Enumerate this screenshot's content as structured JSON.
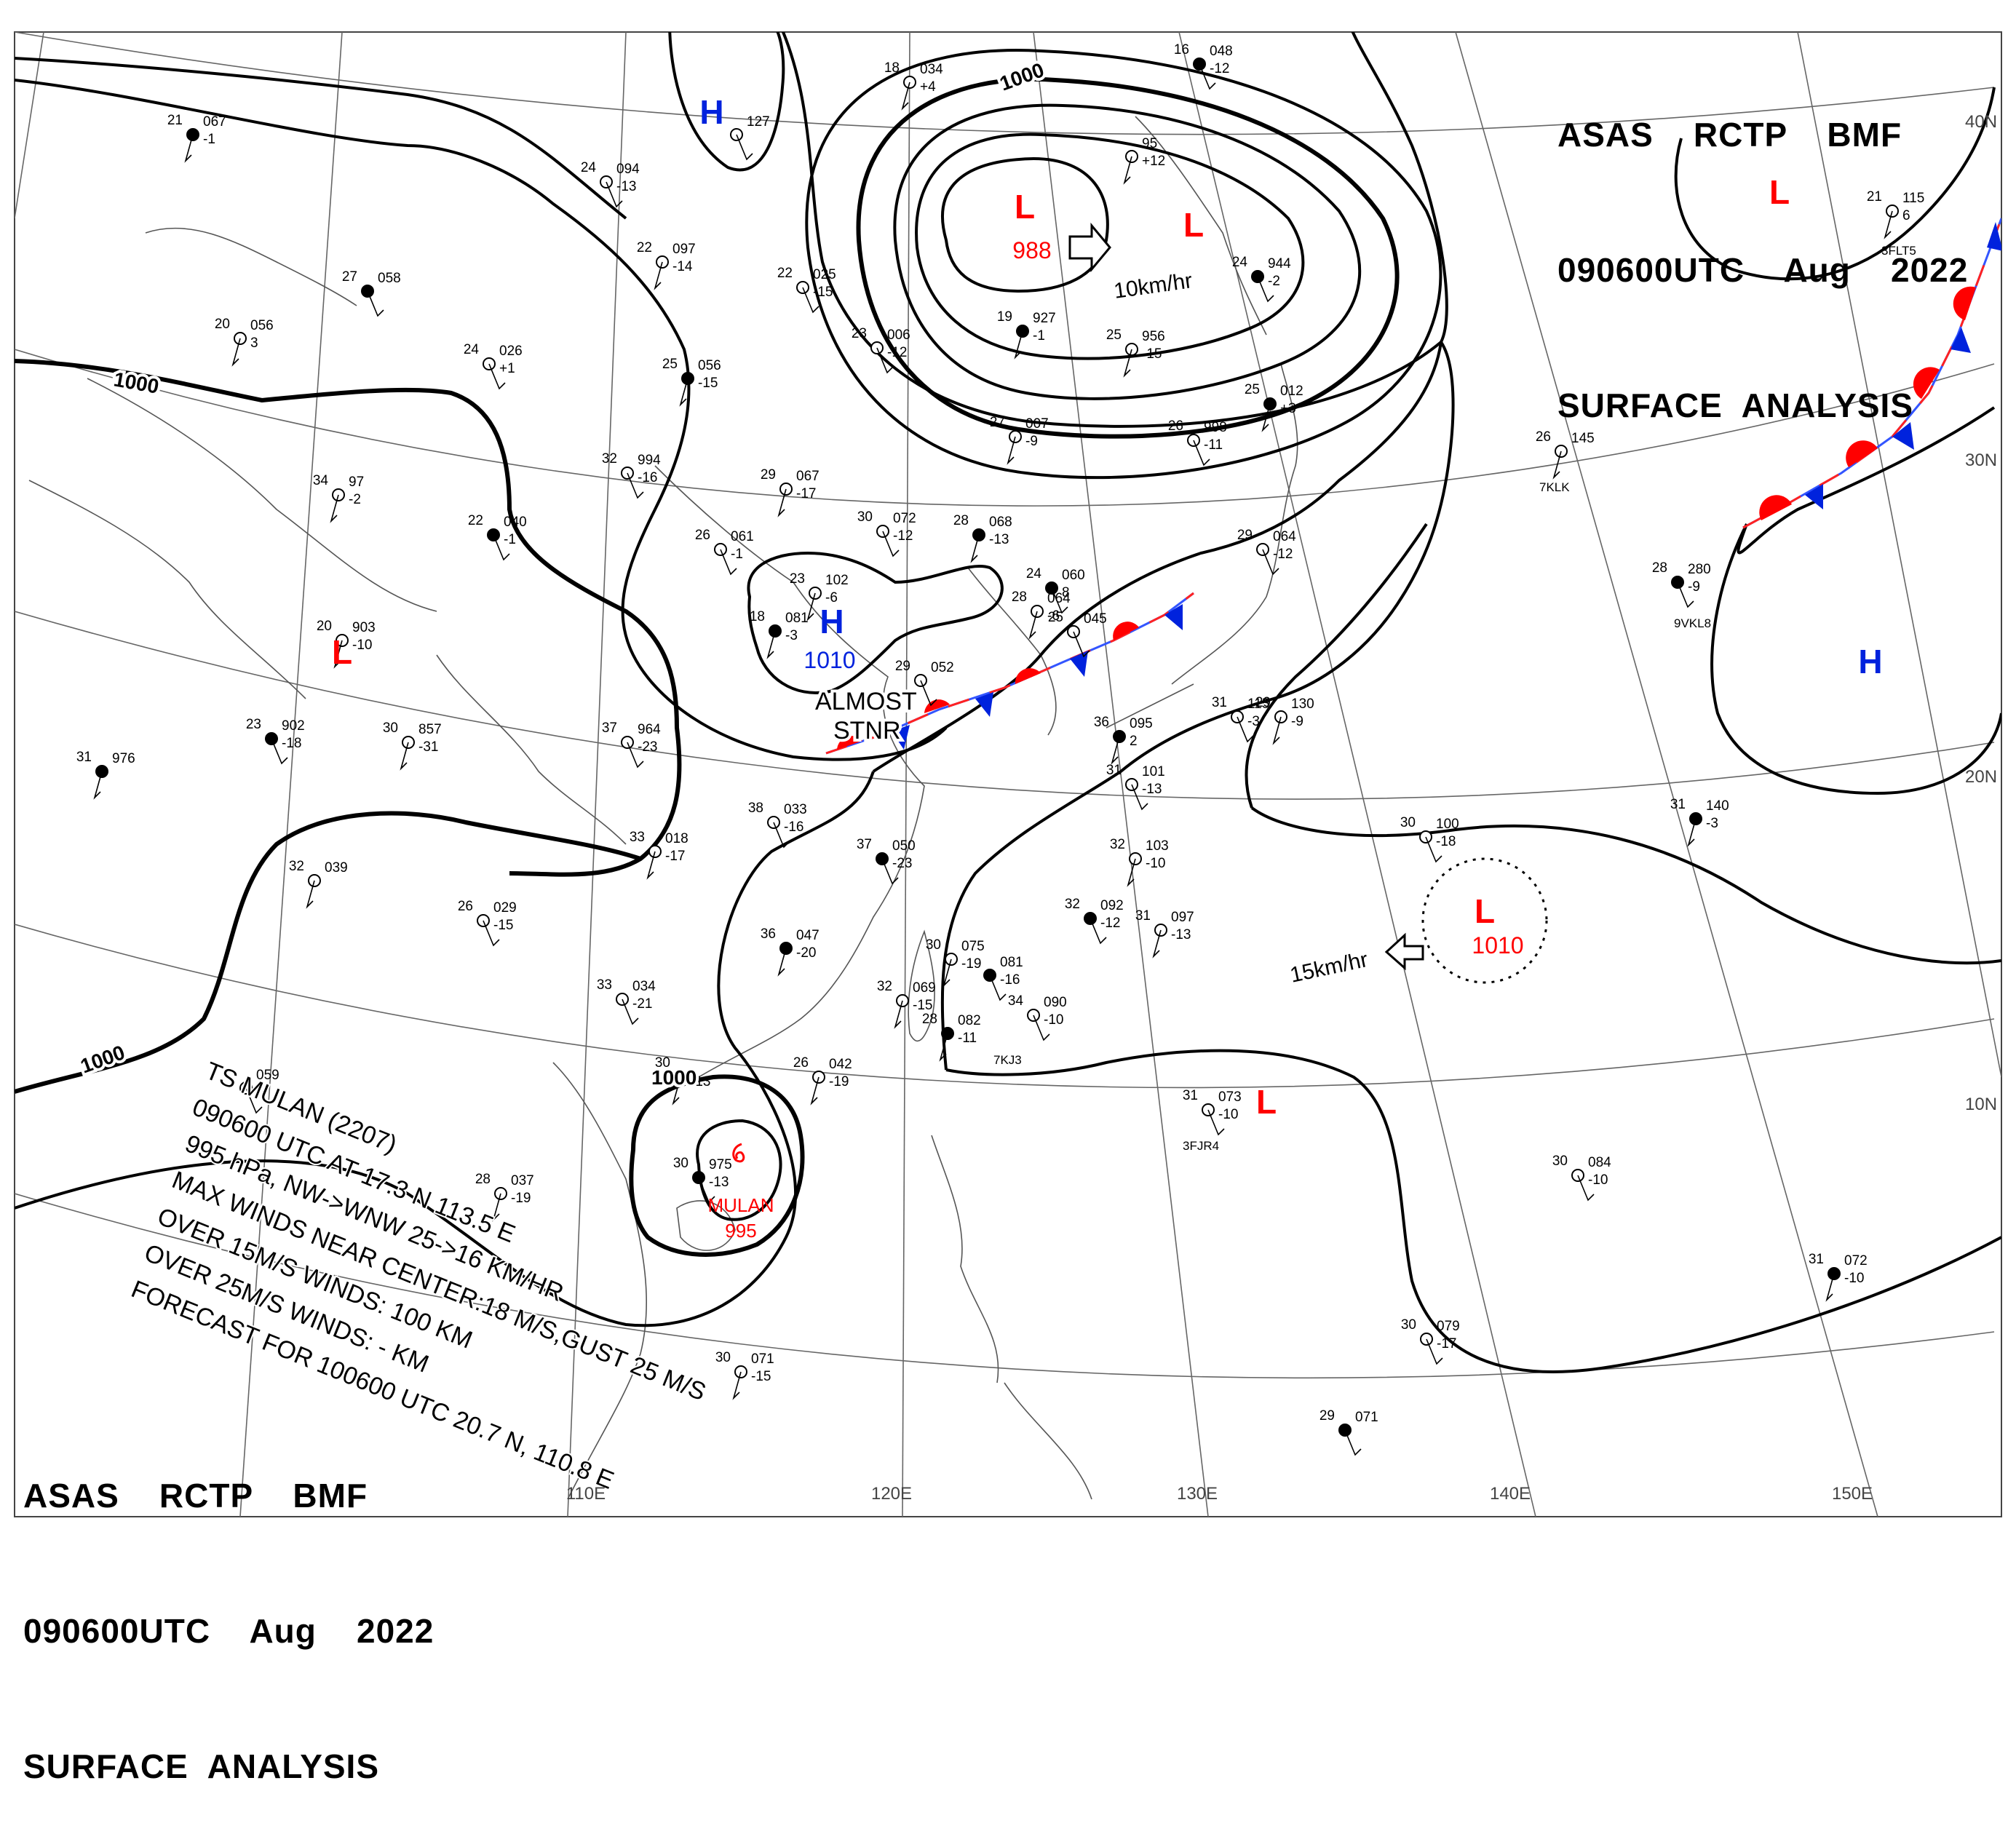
{
  "header": {
    "line1": "ASAS    RCTP    BMF",
    "line2": "090600UTC    Aug    2022",
    "line3": "SURFACE  ANALYSIS"
  },
  "footer": {
    "line1": "ASAS    RCTP    BMF",
    "line2": "090600UTC    Aug    2022",
    "line3": "SURFACE  ANALYSIS"
  },
  "colors": {
    "low": "#ff0000",
    "high": "#0022dd",
    "isobar": "#000000",
    "grid": "#666666",
    "coast": "#555555"
  },
  "lon_labels": [
    "110E",
    "120E",
    "130E",
    "140E",
    "150E"
  ],
  "lat_labels": [
    "40N",
    "30N",
    "20N",
    "10N"
  ],
  "isobar_labels": [
    "1000",
    "1000",
    "1000",
    "1000",
    "1000"
  ],
  "pressure_centers": [
    {
      "letter": "L",
      "value": "988",
      "type": "low",
      "motion": "10km/hr"
    },
    {
      "letter": "L",
      "value": "",
      "type": "low"
    },
    {
      "letter": "L",
      "value": "",
      "type": "low"
    },
    {
      "letter": "L",
      "value": "",
      "type": "low"
    },
    {
      "letter": "L",
      "value": "",
      "type": "low"
    },
    {
      "letter": "L",
      "value": "1010",
      "type": "low",
      "motion": "15km/hr"
    },
    {
      "letter": "H",
      "value": "",
      "type": "high"
    },
    {
      "letter": "H",
      "value": "1010",
      "type": "high"
    },
    {
      "letter": "H",
      "value": "",
      "type": "high"
    }
  ],
  "front_note": [
    "ALMOST",
    "STNR"
  ],
  "storm": {
    "name": "MULAN",
    "pressure": "995",
    "lines": [
      "TS  MULAN  (2207)",
      "090600 UTC  AT 17.3 N  113.5 E",
      "995 hPa, NW->WNW  25->16 KM/HR",
      "MAX WINDS NEAR CENTER:18 M/S,GUST 25 M/S",
      "OVER 15M/S WINDS: 100 KM",
      "OVER 25M/S WINDS: - KM",
      "FORECAST FOR 100600 UTC 20.7 N, 110.8 E"
    ]
  },
  "stations": [
    {
      "t": "21",
      "p": "067",
      "d": "-1"
    },
    {
      "t": "24",
      "p": "094",
      "d": "-13"
    },
    {
      "t": "22",
      "p": "097",
      "d": "-14"
    },
    {
      "t": "27",
      "p": "058",
      "d": ""
    },
    {
      "t": "20",
      "p": "056",
      "d": "3"
    },
    {
      "t": "24",
      "p": "026",
      "d": "+1"
    },
    {
      "t": "25",
      "p": "056",
      "d": "-15"
    },
    {
      "t": "",
      "p": "127",
      "d": ""
    },
    {
      "t": "18",
      "p": "034",
      "d": "+4"
    },
    {
      "t": "16",
      "p": "048",
      "d": "-12"
    },
    {
      "t": "",
      "p": "95",
      "d": "+12"
    },
    {
      "t": "22",
      "p": "025",
      "d": "-15"
    },
    {
      "t": "19",
      "p": "927",
      "d": "-1"
    },
    {
      "t": "23",
      "p": "006",
      "d": "-12"
    },
    {
      "t": "25",
      "p": "956",
      "d": "-15"
    },
    {
      "t": "24",
      "p": "944",
      "d": "-2"
    },
    {
      "t": "27",
      "p": "007",
      "d": "-9"
    },
    {
      "t": "26",
      "p": "998",
      "d": "-11"
    },
    {
      "t": "25",
      "p": "012",
      "d": "+3"
    },
    {
      "t": "32",
      "p": "994",
      "d": "-16"
    },
    {
      "t": "34",
      "p": "97",
      "d": "-2"
    },
    {
      "t": "22",
      "p": "040",
      "d": "-1"
    },
    {
      "t": "29",
      "p": "067",
      "d": "-17"
    },
    {
      "t": "30",
      "p": "072",
      "d": "-12"
    },
    {
      "t": "28",
      "p": "068",
      "d": "-13"
    },
    {
      "t": "26",
      "p": "061",
      "d": "-1"
    },
    {
      "t": "23",
      "p": "102",
      "d": "-6"
    },
    {
      "t": "24",
      "p": "060",
      "d": "8"
    },
    {
      "t": "28",
      "p": "064",
      "d": "-6"
    },
    {
      "t": "25",
      "p": "045",
      "d": ""
    },
    {
      "t": "18",
      "p": "081",
      "d": "-3"
    },
    {
      "t": "29",
      "p": "052",
      "d": ""
    },
    {
      "t": "20",
      "p": "903",
      "d": "-10"
    },
    {
      "t": "23",
      "p": "902",
      "d": "-18"
    },
    {
      "t": "30",
      "p": "857",
      "d": "-31"
    },
    {
      "t": "37",
      "p": "964",
      "d": "-23"
    },
    {
      "t": "31",
      "p": "976",
      "d": ""
    },
    {
      "t": "38",
      "p": "033",
      "d": "-16"
    },
    {
      "t": "33",
      "p": "018",
      "d": "-17"
    },
    {
      "t": "37",
      "p": "050",
      "d": "-23"
    },
    {
      "t": "32",
      "p": "039",
      "d": ""
    },
    {
      "t": "26",
      "p": "029",
      "d": "-15"
    },
    {
      "t": "36",
      "p": "047",
      "d": "-20"
    },
    {
      "t": "33",
      "p": "034",
      "d": "-21"
    },
    {
      "t": "30",
      "p": "075",
      "d": "-19"
    },
    {
      "t": "",
      "p": "081",
      "d": "-16"
    },
    {
      "t": "32",
      "p": "069",
      "d": "-15"
    },
    {
      "t": "34",
      "p": "090",
      "d": "-10"
    },
    {
      "t": "28",
      "p": "082",
      "d": "-11"
    },
    {
      "t": "29",
      "p": "064",
      "d": "-12"
    },
    {
      "t": "26",
      "p": "145",
      "d": ""
    },
    {
      "t": "28",
      "p": "280",
      "d": "-9"
    },
    {
      "t": "29",
      "p": "130",
      "d": "-9"
    },
    {
      "t": "31",
      "p": "115",
      "d": "-3"
    },
    {
      "t": "36",
      "p": "095",
      "d": "2"
    },
    {
      "t": "31",
      "p": "101",
      "d": "-13"
    },
    {
      "t": "32",
      "p": "103",
      "d": "-10"
    },
    {
      "t": "32",
      "p": "092",
      "d": "-12"
    },
    {
      "t": "31",
      "p": "097",
      "d": "-13"
    },
    {
      "t": "30",
      "p": "100",
      "d": "-18"
    },
    {
      "t": "31",
      "p": "140",
      "d": "-3"
    },
    {
      "t": "31",
      "p": "073",
      "d": "-10"
    },
    {
      "t": "26",
      "p": "042",
      "d": "-19"
    },
    {
      "t": "30",
      "p": "975",
      "d": "-13"
    },
    {
      "t": "28",
      "p": "037",
      "d": "-19"
    },
    {
      "t": "30",
      "p": "084",
      "d": "-10"
    },
    {
      "t": "31",
      "p": "072",
      "d": "-10"
    },
    {
      "t": "30",
      "p": "079",
      "d": "-17"
    },
    {
      "t": "30",
      "p": "071",
      "d": "-15"
    },
    {
      "t": "29",
      "p": "071",
      "d": ""
    },
    {
      "t": "21",
      "p": "115",
      "d": "6"
    },
    {
      "t": "",
      "p": "059",
      "d": ""
    },
    {
      "t": "30",
      "p": "",
      "d": "-13"
    }
  ],
  "ship_ids": [
    "7KLK",
    "9VKL8",
    "7KJ3",
    "3FJR4",
    "3FLT5"
  ]
}
